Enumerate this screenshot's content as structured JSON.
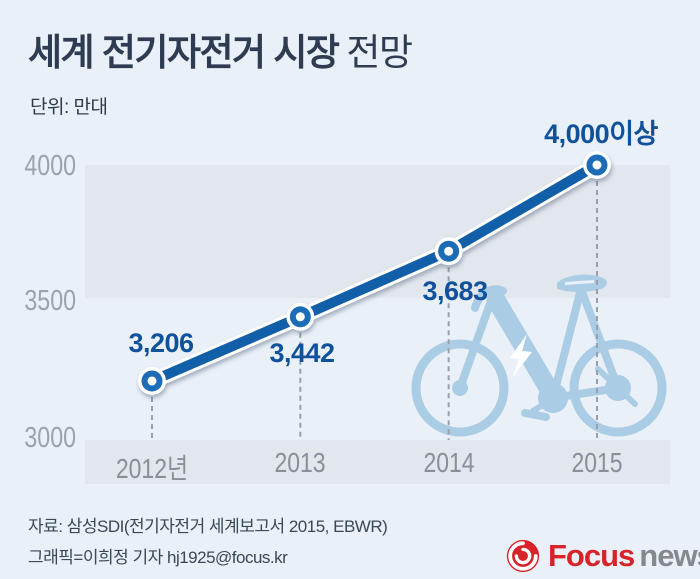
{
  "header": {
    "title_strong": "세계 전기자전거 시장",
    "title_light": "전망",
    "unit_label": "단위: 만대"
  },
  "chart_data": {
    "type": "line",
    "title": "세계 전기자전거 시장 전망",
    "unit": "만대",
    "categories": [
      "2012년",
      "2013",
      "2014",
      "2015"
    ],
    "values": [
      3206,
      3442,
      3683,
      4000
    ],
    "point_labels": [
      "3,206",
      "3,442",
      "3,683",
      "4,000이상"
    ],
    "y_ticks": [
      "4000",
      "3500",
      "3000"
    ],
    "ylim": [
      3000,
      4000
    ],
    "grid": "horizontal band between 3500 and 4000, band under x-axis labels",
    "legend": "none",
    "line_color": "#115fa9",
    "marker_color": "#1c6cb6",
    "value_label_color": "#10519c",
    "band_color": "#e2e6ed",
    "background_color": "#e9f0f8",
    "decoration": "light-blue e-bike silhouette with lightning bolt"
  },
  "footer": {
    "source": "자료: 삼성SDI(전기자전거 세계보고서 2015, EBWR)",
    "credit": "그래픽=이희정 기자 hj1925@focus.kr"
  },
  "logo": {
    "brand_primary": "Focus",
    "brand_secondary": "news",
    "primary_color": "#d8232a",
    "secondary_color": "#85898e"
  }
}
